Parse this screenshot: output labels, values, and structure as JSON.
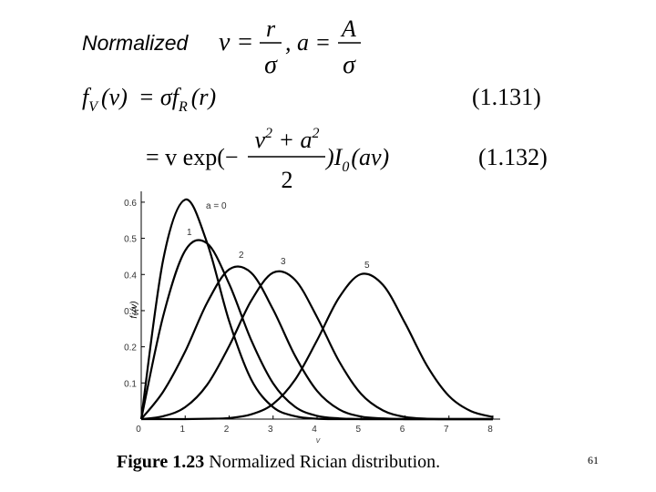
{
  "equations": {
    "normalized": {
      "label": "Normalized",
      "nu": "ν =",
      "r": "r",
      "sigma1": "σ",
      "a": ", a =",
      "A": "A",
      "sigma2": "σ"
    },
    "eq1131": {
      "f": "f",
      "V": "V",
      "v": "(v)",
      "eq": "= σf",
      "R": "R",
      "r": "(r)",
      "number": "(1.131)"
    },
    "eq1132": {
      "eq": "= v exp(−",
      "num_v": "v",
      "sq1": "2",
      "plus_a": " + a",
      "sq2": "2",
      "den": "2",
      "close": ")I",
      "zero": "0",
      "av": "(av)",
      "number": "(1.132)"
    }
  },
  "chart_data": {
    "type": "line",
    "x": [
      0,
      0.5,
      1,
      1.5,
      2,
      2.5,
      3,
      3.5,
      4,
      4.5,
      5,
      5.5,
      6,
      6.5,
      7,
      7.5,
      8
    ],
    "series": [
      {
        "name": "a = 0",
        "color": "#000000",
        "values": [
          0,
          0.441,
          0.607,
          0.487,
          0.271,
          0.11,
          0.033,
          0.008,
          0.001,
          0,
          0,
          0,
          0,
          0,
          0,
          0,
          0
        ]
      },
      {
        "name": "1",
        "color": "#000000",
        "values": [
          0,
          0.285,
          0.466,
          0.486,
          0.374,
          0.219,
          0.099,
          0.034,
          0.009,
          0.002,
          0,
          0,
          0,
          0,
          0,
          0,
          0
        ]
      },
      {
        "name": "2",
        "color": "#000000",
        "values": [
          0,
          0.076,
          0.187,
          0.322,
          0.414,
          0.405,
          0.303,
          0.175,
          0.078,
          0.027,
          0.007,
          0.002,
          0,
          0,
          0,
          0,
          0
        ]
      },
      {
        "name": "3",
        "color": "#000000",
        "values": [
          0,
          0.008,
          0.033,
          0.095,
          0.202,
          0.327,
          0.405,
          0.385,
          0.282,
          0.16,
          0.07,
          0.024,
          0.006,
          0.001,
          0,
          0,
          0
        ]
      },
      {
        "name": "5",
        "color": "#000000",
        "values": [
          0,
          0,
          0,
          0.001,
          0.003,
          0.013,
          0.042,
          0.109,
          0.218,
          0.336,
          0.401,
          0.371,
          0.266,
          0.148,
          0.064,
          0.022,
          0.006
        ]
      }
    ],
    "xlim": [
      0,
      8
    ],
    "ylim": [
      0,
      0.63
    ],
    "xticks": [
      0,
      1,
      2,
      3,
      4,
      5,
      6,
      7,
      8
    ],
    "yticks": [
      0.1,
      0.2,
      0.3,
      0.4,
      0.5,
      0.6
    ],
    "xlabel": "v",
    "ylabel": {
      "main": "f",
      "sub": "V",
      "arg": "(v)"
    }
  },
  "caption": {
    "figure": "Figure 1.23",
    "text": "Normalized Rician distribution."
  },
  "page_number": "61"
}
